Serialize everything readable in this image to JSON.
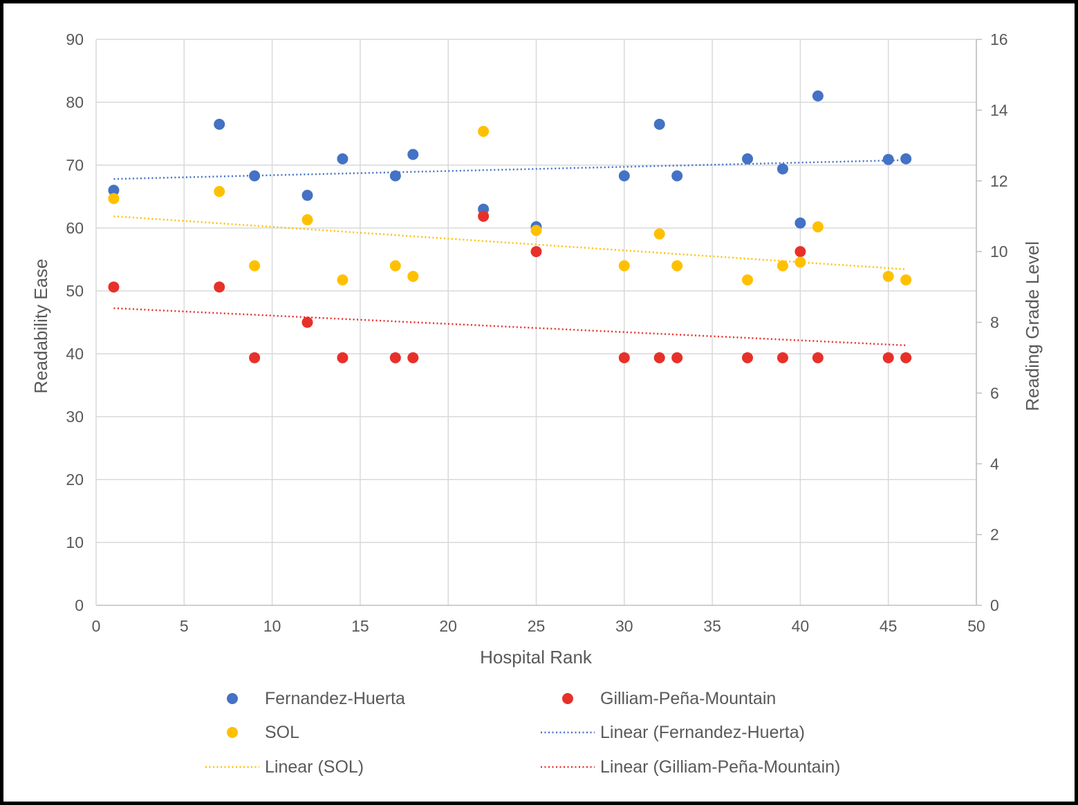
{
  "chart_data": {
    "type": "scatter",
    "xlabel": "Hospital Rank",
    "ylabel": "Readability Ease",
    "y2label": "Reading Grade Level",
    "xlim": [
      0,
      50
    ],
    "ylim": [
      0,
      90
    ],
    "y2lim": [
      0,
      16
    ],
    "xticks": [
      "0",
      "5",
      "10",
      "15",
      "20",
      "25",
      "30",
      "35",
      "40",
      "45",
      "50"
    ],
    "yticks": [
      "0",
      "10",
      "20",
      "30",
      "40",
      "50",
      "60",
      "70",
      "80",
      "90"
    ],
    "y2ticks": [
      "0",
      "2",
      "4",
      "6",
      "8",
      "10",
      "12",
      "14",
      "16"
    ],
    "grid": true,
    "legend_position": "bottom",
    "series": [
      {
        "name": "Fernandez-Huerta",
        "axis": "left",
        "color": "#4472C4",
        "points": [
          [
            1,
            66
          ],
          [
            7,
            76.5
          ],
          [
            9,
            68.3
          ],
          [
            12,
            65.2
          ],
          [
            14,
            71
          ],
          [
            17,
            68.3
          ],
          [
            18,
            71.7
          ],
          [
            22,
            63
          ],
          [
            25,
            60.2
          ],
          [
            30,
            68.3
          ],
          [
            32,
            76.5
          ],
          [
            33,
            68.3
          ],
          [
            37,
            71
          ],
          [
            39,
            69.4
          ],
          [
            40,
            60.8
          ],
          [
            41,
            81
          ],
          [
            45,
            70.9
          ],
          [
            46,
            71
          ]
        ]
      },
      {
        "name": "Gilliam-Peña-Mountain",
        "axis": "right",
        "color": "#E8302A",
        "points": [
          [
            1,
            9
          ],
          [
            7,
            9
          ],
          [
            9,
            7
          ],
          [
            12,
            8
          ],
          [
            14,
            7
          ],
          [
            17,
            7
          ],
          [
            18,
            7
          ],
          [
            22,
            11
          ],
          [
            25,
            10
          ],
          [
            30,
            7
          ],
          [
            32,
            7
          ],
          [
            33,
            7
          ],
          [
            37,
            7
          ],
          [
            39,
            7
          ],
          [
            40,
            10
          ],
          [
            41,
            7
          ],
          [
            45,
            7
          ],
          [
            46,
            7
          ]
        ]
      },
      {
        "name": "SOL",
        "axis": "right",
        "color": "#FFC000",
        "points": [
          [
            1,
            11.5
          ],
          [
            7,
            11.7
          ],
          [
            9,
            9.6
          ],
          [
            12,
            10.9
          ],
          [
            14,
            9.2
          ],
          [
            17,
            9.6
          ],
          [
            18,
            9.3
          ],
          [
            22,
            13.4
          ],
          [
            25,
            10.6
          ],
          [
            30,
            9.6
          ],
          [
            32,
            10.5
          ],
          [
            33,
            9.6
          ],
          [
            37,
            9.2
          ],
          [
            39,
            9.6
          ],
          [
            40,
            9.7
          ],
          [
            41,
            10.7
          ],
          [
            45,
            9.3
          ],
          [
            46,
            9.2
          ]
        ]
      }
    ],
    "trendlines": [
      {
        "name": "Linear (Fernandez-Huerta)",
        "axis": "left",
        "color": "#4472C4",
        "from": [
          1,
          67.8
        ],
        "to": [
          46,
          70.8
        ]
      },
      {
        "name": "Linear (SOL)",
        "axis": "right",
        "color": "#FFC000",
        "from": [
          1,
          11.0
        ],
        "to": [
          46,
          9.5
        ]
      },
      {
        "name": "Linear (Gilliam-Peña-Mountain)",
        "axis": "right",
        "color": "#E8302A",
        "from": [
          1,
          8.4
        ],
        "to": [
          46,
          7.35
        ]
      }
    ],
    "legend": [
      {
        "label": "Fernandez-Huerta",
        "kind": "marker",
        "color": "#4472C4"
      },
      {
        "label": "Gilliam-Peña-Mountain",
        "kind": "marker",
        "color": "#E8302A"
      },
      {
        "label": "SOL",
        "kind": "marker",
        "color": "#FFC000"
      },
      {
        "label": "Linear (Fernandez-Huerta)",
        "kind": "line",
        "color": "#4472C4"
      },
      {
        "label": "Linear (SOL)",
        "kind": "line",
        "color": "#FFC000"
      },
      {
        "label": "Linear (Gilliam-Peña-Mountain)",
        "kind": "line",
        "color": "#E8302A"
      }
    ]
  }
}
